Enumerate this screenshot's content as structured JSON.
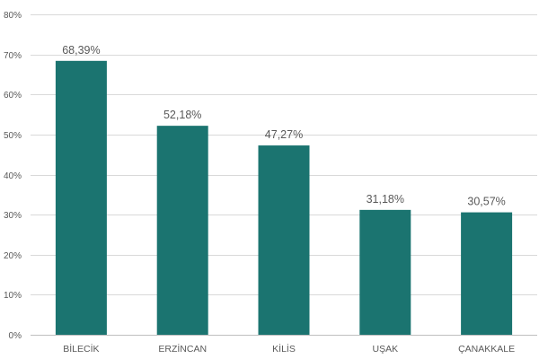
{
  "chart_data": {
    "type": "bar",
    "title": "",
    "xlabel": "",
    "ylabel": "",
    "categories": [
      "BİLECİK",
      "ERZİNCAN",
      "KİLİS",
      "UŞAK",
      "ÇANAKKALE"
    ],
    "values": [
      68.39,
      52.18,
      47.27,
      31.18,
      30.57
    ],
    "data_labels": [
      "68,39%",
      "52,18%",
      "47,27%",
      "31,18%",
      "30,57%"
    ],
    "ylim": [
      0,
      80
    ],
    "yticks": [
      0,
      10,
      20,
      30,
      40,
      50,
      60,
      70,
      80
    ],
    "ytick_labels": [
      "0%",
      "10%",
      "20%",
      "30%",
      "40%",
      "50%",
      "60%",
      "70%",
      "80%"
    ],
    "grid": true,
    "legend": "none",
    "bar_color": "#1b7470"
  }
}
